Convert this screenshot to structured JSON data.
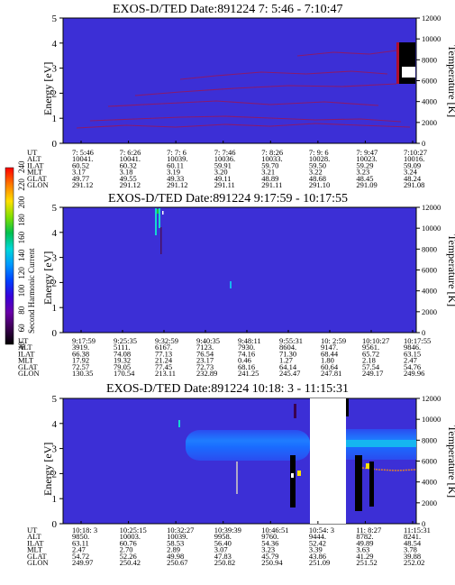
{
  "colors": {
    "background_level": "#3c2fd6",
    "trace_dark": "#8a1a6c",
    "blue_band": "#1f62ff",
    "cyan_band": "#15b6f0",
    "gap": "#ffffff"
  },
  "colorbar": {
    "label": "Second Harmonic Current",
    "ticks": [
      "40",
      "60",
      "80",
      "100",
      "120",
      "140",
      "160",
      "180",
      "200",
      "220",
      "240"
    ],
    "colors": [
      "#000000",
      "#3a0050",
      "#6a00a8",
      "#3a00d8",
      "#0040ff",
      "#0098ff",
      "#00d8d8",
      "#00c050",
      "#80e000",
      "#ffe000",
      "#ff8000",
      "#ff0000"
    ]
  },
  "table_row_labels": [
    "UT",
    "ALT",
    "ILAT",
    "MLT",
    "GLAT",
    "GLON"
  ],
  "chart_data": [
    {
      "type": "heatmap",
      "title": "EXOS-D/TED   Date:891224   7: 5:46 - 7:10:47",
      "ylabel": "Energy [eV]",
      "y2label": "Temperature [K]",
      "ylim": [
        0,
        5
      ],
      "y2lim": [
        0,
        12000
      ],
      "yticks": [
        "0",
        "1",
        "2",
        "3",
        "4",
        "5"
      ],
      "y2ticks": [
        "0",
        "2000",
        "4000",
        "6000",
        "8000",
        "10000",
        "12000"
      ],
      "columns": [
        {
          "UT": "7: 5:46",
          "ALT": "10041.",
          "ILAT": "60.52",
          "MLT": "3.17",
          "GLAT": "49.77",
          "GLON": "291.12"
        },
        {
          "UT": "7: 6:26",
          "ALT": "10041.",
          "ILAT": "60.32",
          "MLT": "3.18",
          "GLAT": "49.55",
          "GLON": "291.12"
        },
        {
          "UT": "7: 7: 6",
          "ALT": "10039.",
          "ILAT": "60.11",
          "MLT": "3.19",
          "GLAT": "49.33",
          "GLON": "291.12"
        },
        {
          "UT": "7: 7:46",
          "ALT": "10036.",
          "ILAT": "59.91",
          "MLT": "3.20",
          "GLAT": "49.11",
          "GLON": "291.11"
        },
        {
          "UT": "7: 8:26",
          "ALT": "10033.",
          "ILAT": "59.70",
          "MLT": "3.21",
          "GLAT": "48.89",
          "GLON": "291.11"
        },
        {
          "UT": "7: 9: 6",
          "ALT": "10028.",
          "ILAT": "59.50",
          "MLT": "3.22",
          "GLAT": "48.68",
          "GLON": "291.10"
        },
        {
          "UT": "7: 9:47",
          "ALT": "10023.",
          "ILAT": "59.29",
          "MLT": "3.23",
          "GLAT": "48.45",
          "GLON": "291.09"
        },
        {
          "UT": "7:10:27",
          "ALT": "10016.",
          "ILAT": "59.09",
          "MLT": "3.24",
          "GLAT": "48.24",
          "GLON": "291.08"
        }
      ]
    },
    {
      "type": "heatmap",
      "title": "EXOS-D/TED   Date:891224   9:17:59 - 10:17:55",
      "ylabel": "Energy [eV]",
      "y2label": "Temperature [K]",
      "ylim": [
        0,
        5
      ],
      "y2lim": [
        0,
        12000
      ],
      "yticks": [
        "0",
        "1",
        "2",
        "3",
        "4",
        "5"
      ],
      "y2ticks": [
        "0",
        "2000",
        "4000",
        "6000",
        "8000",
        "10000",
        "12000"
      ],
      "columns": [
        {
          "UT": "9:17:59",
          "ALT": "3919.",
          "ILAT": "66.38",
          "MLT": "17.92",
          "GLAT": "72.57",
          "GLON": "130.35"
        },
        {
          "UT": "9:25:35",
          "ALT": "5111.",
          "ILAT": "74.08",
          "MLT": "19.32",
          "GLAT": "79.05",
          "GLON": "170.54"
        },
        {
          "UT": "9:32:59",
          "ALT": "6167.",
          "ILAT": "77.13",
          "MLT": "21.24",
          "GLAT": "77.45",
          "GLON": "213.11"
        },
        {
          "UT": "9:40:35",
          "ALT": "7123.",
          "ILAT": "76.54",
          "MLT": "23.17",
          "GLAT": "72.73",
          "GLON": "232.89"
        },
        {
          "UT": "9:48:11",
          "ALT": "7930.",
          "ILAT": "74.16",
          "MLT": "0.46",
          "GLAT": "68.16",
          "GLON": "241.25"
        },
        {
          "UT": "9:55:31",
          "ALT": "8604.",
          "ILAT": "71.30",
          "MLT": "1.27",
          "GLAT": "64.14",
          "GLON": "245.47"
        },
        {
          "UT": "10: 2:59",
          "ALT": "9147.",
          "ILAT": "68.44",
          "MLT": "1.80",
          "GLAT": "60.64",
          "GLON": "247.81"
        },
        {
          "UT": "10:10:27",
          "ALT": "9561.",
          "ILAT": "65.72",
          "MLT": "2.18",
          "GLAT": "57.54",
          "GLON": "249.17"
        },
        {
          "UT": "10:17:55",
          "ALT": "9846.",
          "ILAT": "63.15",
          "MLT": "2.47",
          "GLAT": "54.76",
          "GLON": "249.96"
        }
      ]
    },
    {
      "type": "heatmap",
      "title": "EXOS-D/TED   Date:891224   10:18: 3 - 11:15:31",
      "ylabel": "Energy [eV]",
      "y2label": "Temperature [K]",
      "ylim": [
        0,
        5
      ],
      "y2lim": [
        0,
        12000
      ],
      "yticks": [
        "0",
        "1",
        "2",
        "3",
        "4",
        "5"
      ],
      "y2ticks": [
        "0",
        "2000",
        "4000",
        "6000",
        "8000",
        "10000",
        "12000"
      ],
      "columns": [
        {
          "UT": "10:18: 3",
          "ALT": "9850.",
          "ILAT": "63.11",
          "MLT": "2.47",
          "GLAT": "54.72",
          "GLON": "249.97"
        },
        {
          "UT": "10:25:15",
          "ALT": "10003.",
          "ILAT": "60.76",
          "MLT": "2.70",
          "GLAT": "52.26",
          "GLON": "250.42"
        },
        {
          "UT": "10:32:27",
          "ALT": "10039.",
          "ILAT": "58.53",
          "MLT": "2.89",
          "GLAT": "49.98",
          "GLON": "250.67"
        },
        {
          "UT": "10:39:39",
          "ALT": "9958.",
          "ILAT": "56.40",
          "MLT": "3.07",
          "GLAT": "47.83",
          "GLON": "250.82"
        },
        {
          "UT": "10:46:51",
          "ALT": "9760.",
          "ILAT": "54.36",
          "MLT": "3.23",
          "GLAT": "45.79",
          "GLON": "250.94"
        },
        {
          "UT": "10:54: 3",
          "ALT": "9444.",
          "ILAT": "52.42",
          "MLT": "3.39",
          "GLAT": "43.86",
          "GLON": "251.09"
        },
        {
          "UT": "11: 8:27",
          "ALT": "8782.",
          "ILAT": "49.89",
          "MLT": "3.63",
          "GLAT": "41.29",
          "GLON": "251.52"
        },
        {
          "UT": "11:15:31",
          "ALT": "8241.",
          "ILAT": "48.54",
          "MLT": "3.78",
          "GLAT": "39.88",
          "GLON": "252.02"
        }
      ]
    }
  ]
}
